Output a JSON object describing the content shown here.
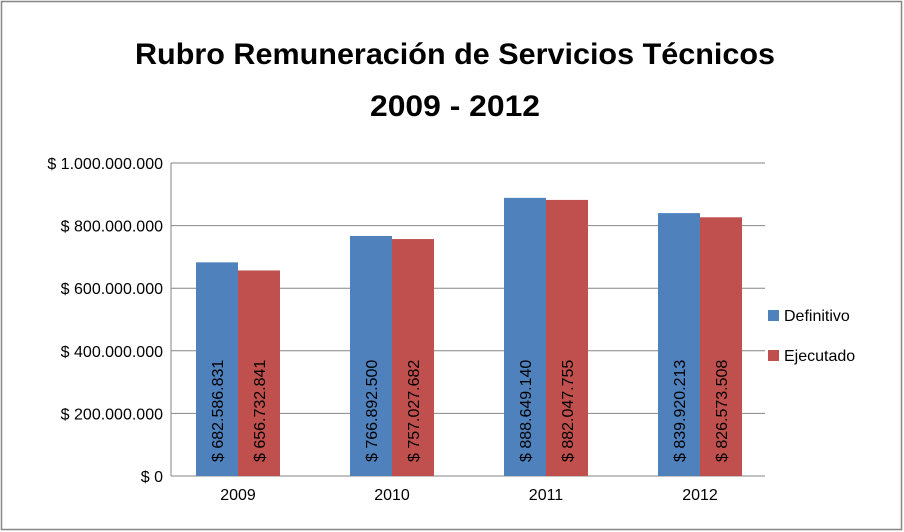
{
  "chart_data": {
    "type": "bar",
    "title": [
      "Rubro Remuneración de Servicios Técnicos",
      "2009 - 2012"
    ],
    "categories": [
      "2009",
      "2010",
      "2011",
      "2012"
    ],
    "series": [
      {
        "name": "Definitivo",
        "color": "#4f81bd",
        "values": [
          682586831,
          766892500,
          888649140,
          839920213
        ],
        "value_labels": [
          "$ 682.586.831",
          "$ 766.892.500",
          "$ 888.649.140",
          "$ 839.920.213"
        ]
      },
      {
        "name": "Ejecutado",
        "color": "#c0504d",
        "values": [
          656732841,
          757027682,
          882047755,
          826573508
        ],
        "value_labels": [
          "$ 656.732.841",
          "$ 757.027.682",
          "$ 882.047.755",
          "$ 826.573.508"
        ]
      }
    ],
    "ylim": [
      0,
      1000000000
    ],
    "yticks": [
      {
        "value": 0,
        "label": "$ 0"
      },
      {
        "value": 200000000,
        "label": "$ 200.000.000"
      },
      {
        "value": 400000000,
        "label": "$ 400.000.000"
      },
      {
        "value": 600000000,
        "label": "$ 600.000.000"
      },
      {
        "value": 800000000,
        "label": "$ 800.000.000"
      },
      {
        "value": 1000000000,
        "label": "$ 1.000.000.000"
      }
    ],
    "grid": true,
    "legend": "right"
  }
}
